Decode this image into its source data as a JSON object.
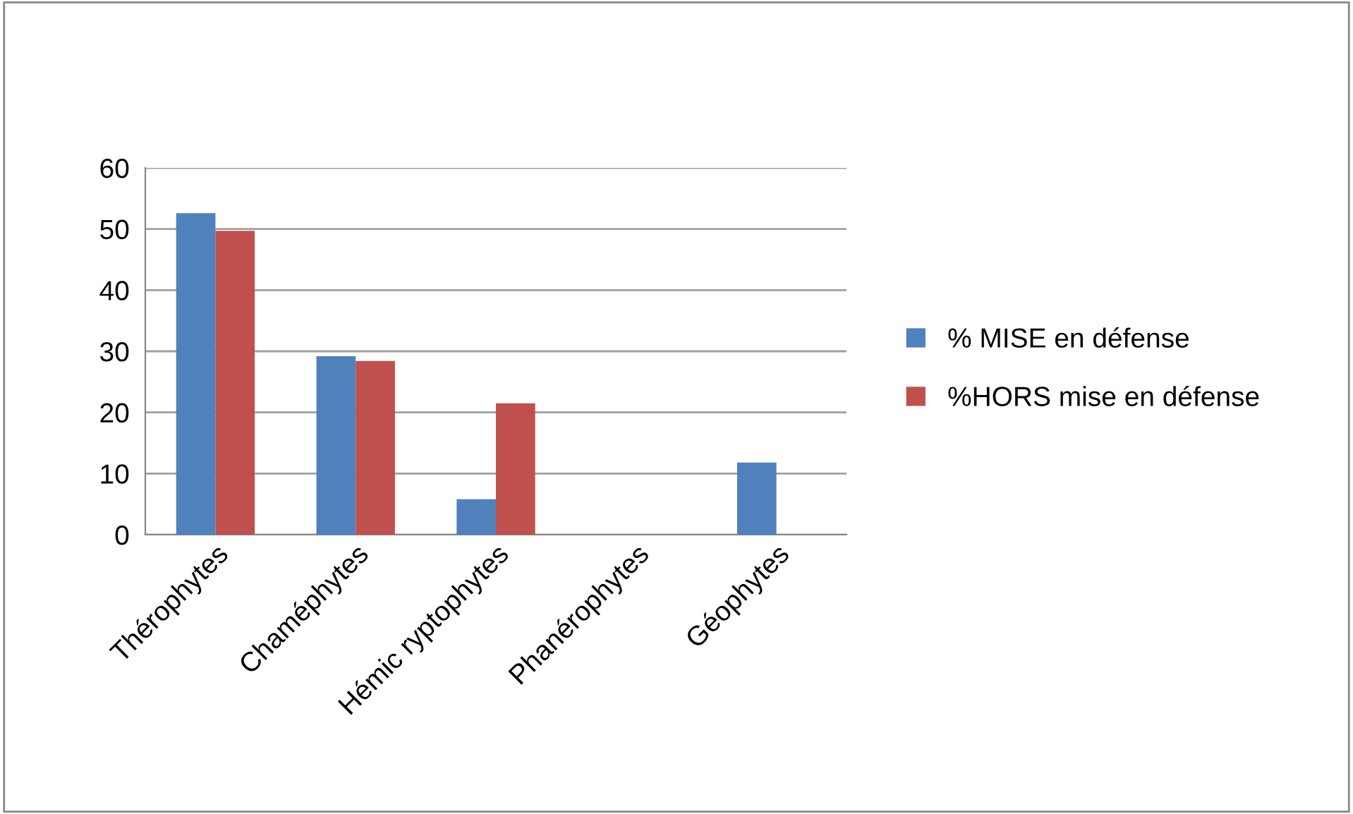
{
  "chart_data": {
    "type": "bar",
    "categories": [
      "Thérophytes",
      "Chaméphytes",
      "Hémic ryptophytes",
      "Phanérophytes",
      "Géophytes"
    ],
    "series": [
      {
        "name": "% MISE en défense",
        "color": "#4f81bd",
        "values": [
          52.6,
          29.2,
          5.8,
          0,
          11.8
        ]
      },
      {
        "name": "%HORS mise en défense",
        "color": "#c0504d",
        "values": [
          49.7,
          28.4,
          21.5,
          0,
          0
        ]
      }
    ],
    "ylim": [
      0,
      60
    ],
    "yticks": [
      0,
      10,
      20,
      30,
      40,
      50,
      60
    ],
    "grid": "y",
    "legend": "right"
  }
}
